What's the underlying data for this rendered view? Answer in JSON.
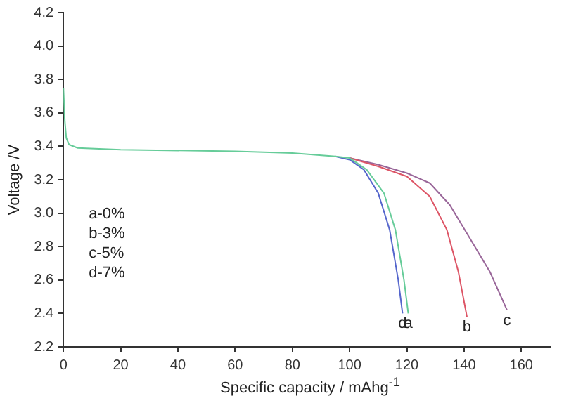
{
  "chart_data": {
    "type": "line",
    "xlabel": "Specific capacity / mAhg$^{-1}$",
    "ylabel": "Voltage /V",
    "xlim": [
      0,
      170
    ],
    "ylim": [
      2.2,
      4.2
    ],
    "xticks": [
      0,
      20,
      40,
      60,
      80,
      100,
      120,
      140,
      160
    ],
    "yticks": [
      2.2,
      2.4,
      2.6,
      2.8,
      {
        "value": 3,
        "label": "3.0"
      },
      3.2,
      3.4,
      3.6,
      3.8,
      {
        "value": 4,
        "label": "4.0"
      },
      4.2
    ],
    "grid": false,
    "legend": false,
    "marker": "none",
    "line_style": "solid",
    "annotations": [
      "a-0%",
      "b-3%",
      "c-5%",
      "d-7%"
    ],
    "series": [
      {
        "name": "a",
        "color": "#66cc99",
        "x": [
          0,
          0.5,
          1,
          2,
          5,
          20,
          60,
          80,
          95,
          100,
          106,
          112,
          116,
          119,
          120.5
        ],
        "values": [
          3.75,
          3.55,
          3.45,
          3.41,
          3.39,
          3.38,
          3.37,
          3.36,
          3.34,
          3.33,
          3.26,
          3.12,
          2.9,
          2.6,
          2.4
        ]
      },
      {
        "name": "b",
        "color": "#dd5566",
        "x": [
          100,
          110,
          120,
          128,
          134,
          138,
          141
        ],
        "values": [
          3.33,
          3.28,
          3.22,
          3.1,
          2.9,
          2.65,
          2.38
        ]
      },
      {
        "name": "c",
        "color": "#996699",
        "x": [
          100,
          110,
          120,
          128,
          135,
          142,
          149,
          155
        ],
        "values": [
          3.33,
          3.29,
          3.24,
          3.18,
          3.05,
          2.85,
          2.65,
          2.42
        ]
      },
      {
        "name": "d",
        "color": "#5566cc",
        "x": [
          95,
          100,
          105,
          110,
          114,
          117,
          118.5
        ],
        "values": [
          3.34,
          3.32,
          3.26,
          3.12,
          2.9,
          2.6,
          2.4
        ]
      }
    ]
  }
}
